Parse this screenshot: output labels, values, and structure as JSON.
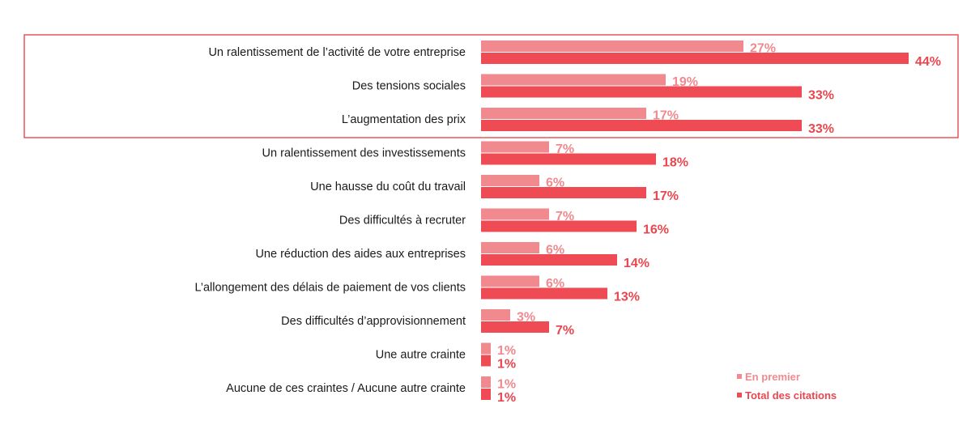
{
  "chart_data": {
    "type": "bar",
    "orientation": "horizontal",
    "title": "",
    "xlabel": "",
    "ylabel": "",
    "xlim": [
      0,
      44
    ],
    "grid": false,
    "legend_position": "bottom-right",
    "highlighted_categories": [
      0,
      1,
      2
    ],
    "categories": [
      "Un ralentissement de l’activité de votre entreprise",
      "Des tensions sociales",
      "L’augmentation des prix",
      "Un ralentissement des investissements",
      "Une hausse du coût du travail",
      "Des difficultés à recruter",
      "Une réduction des aides aux entreprises",
      "L’allongement des délais de paiement de vos clients",
      "Des difficultés d’approvisionnement",
      "Une autre crainte",
      "Aucune de ces craintes / Aucune autre crainte"
    ],
    "series": [
      {
        "name": "En premier",
        "color": "#f08a8e",
        "values": [
          27,
          19,
          17,
          7,
          6,
          7,
          6,
          6,
          3,
          1,
          1
        ],
        "labels": [
          "27%",
          "19%",
          "17%",
          "7%",
          "6%",
          "7%",
          "6%",
          "6%",
          "3%",
          "1%",
          "1%"
        ]
      },
      {
        "name": "Total des citations",
        "color": "#ee4b55",
        "values": [
          44,
          33,
          33,
          18,
          17,
          16,
          14,
          13,
          7,
          1,
          1
        ],
        "labels": [
          "44%",
          "33%",
          "33%",
          "18%",
          "17%",
          "16%",
          "14%",
          "13%",
          "7%",
          "1%",
          "1%"
        ]
      }
    ]
  },
  "colors": {
    "highlight_border": "#e8575c",
    "first_label": "#f08a8e",
    "total_label": "#e8474f"
  }
}
